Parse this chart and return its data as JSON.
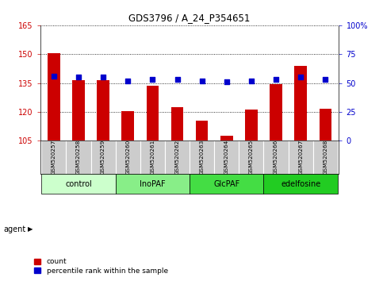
{
  "title": "GDS3796 / A_24_P354651",
  "samples": [
    "GSM520257",
    "GSM520258",
    "GSM520259",
    "GSM520260",
    "GSM520261",
    "GSM520262",
    "GSM520263",
    "GSM520264",
    "GSM520265",
    "GSM520266",
    "GSM520267",
    "GSM520268"
  ],
  "counts": [
    150.5,
    136.5,
    136.5,
    120.2,
    133.5,
    122.5,
    115.5,
    107.5,
    121.0,
    134.5,
    144.0,
    121.5
  ],
  "percentile": [
    56,
    55,
    55,
    52,
    53,
    53,
    52,
    51,
    52,
    53,
    55,
    53
  ],
  "ylim_left": [
    105,
    165
  ],
  "ylim_right": [
    0,
    100
  ],
  "yticks_left": [
    105,
    120,
    135,
    150,
    165
  ],
  "yticks_right": [
    0,
    25,
    50,
    75,
    100
  ],
  "groups": [
    {
      "label": "control",
      "start": 0,
      "end": 3,
      "color": "#ccffcc"
    },
    {
      "label": "InoPAF",
      "start": 3,
      "end": 6,
      "color": "#88ee88"
    },
    {
      "label": "GlcPAF",
      "start": 6,
      "end": 9,
      "color": "#44dd44"
    },
    {
      "label": "edelfosine",
      "start": 9,
      "end": 12,
      "color": "#22cc22"
    }
  ],
  "bar_color": "#cc0000",
  "dot_color": "#0000cc",
  "bar_width": 0.5,
  "sample_box_color": "#cccccc",
  "legend_items": [
    "count",
    "percentile rank within the sample"
  ],
  "agent_label": "agent"
}
